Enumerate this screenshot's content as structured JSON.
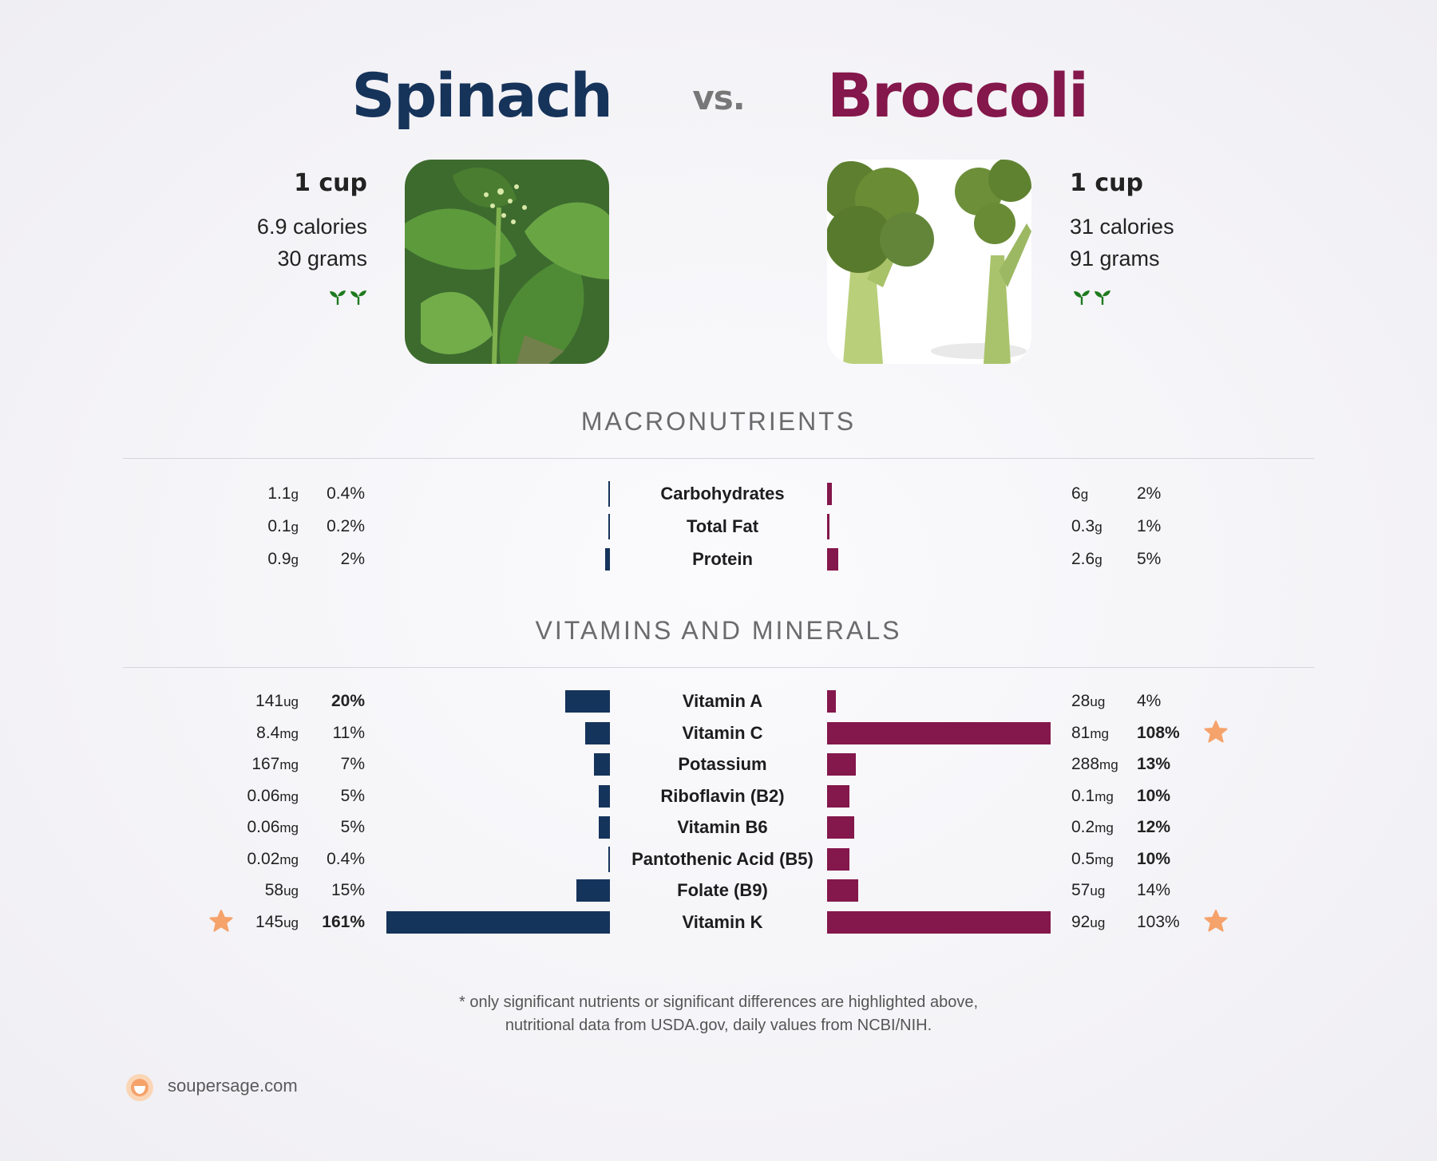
{
  "header": {
    "left_name": "Spinach",
    "vs": "vs.",
    "right_name": "Broccoli"
  },
  "left": {
    "serving": "1 cup",
    "calories": "6.9 calories",
    "grams": "30 grams",
    "image": "spinach-photo",
    "color": "#15345b"
  },
  "right": {
    "serving": "1 cup",
    "calories": "31 calories",
    "grams": "91 grams",
    "image": "broccoli-photo",
    "color": "#84174b"
  },
  "sections": {
    "macros": "MACRONUTRIENTS",
    "vitamins": "VITAMINS AND MINERALS"
  },
  "chart_data": [
    {
      "type": "bar",
      "title": "MACRONUTRIENTS",
      "categories": [
        "Carbohydrates",
        "Total Fat",
        "Protein"
      ],
      "series": [
        {
          "name": "Spinach",
          "values": [
            1.1,
            0.1,
            0.9
          ],
          "units": [
            "g",
            "g",
            "g"
          ],
          "dv_percent": [
            0.4,
            0.2,
            2
          ],
          "dv_labels": [
            "0.4%",
            "0.2%",
            "2%"
          ]
        },
        {
          "name": "Broccoli",
          "values": [
            6,
            0.3,
            2.6
          ],
          "units": [
            "g",
            "g",
            "g"
          ],
          "dv_percent": [
            2,
            1,
            5
          ],
          "dv_labels": [
            "2%",
            "1%",
            "5%"
          ]
        }
      ]
    },
    {
      "type": "bar",
      "title": "VITAMINS AND MINERALS",
      "categories": [
        "Vitamin A",
        "Vitamin C",
        "Potassium",
        "Riboflavin (B2)",
        "Vitamin B6",
        "Pantothenic Acid (B5)",
        "Folate (B9)",
        "Vitamin K"
      ],
      "series": [
        {
          "name": "Spinach",
          "values": [
            141,
            8.4,
            167,
            0.06,
            0.06,
            0.02,
            58,
            145
          ],
          "units": [
            "ug",
            "mg",
            "mg",
            "mg",
            "mg",
            "mg",
            "ug",
            "ug"
          ],
          "dv_percent": [
            20,
            11,
            7,
            5,
            5,
            0.4,
            15,
            161
          ],
          "dv_labels": [
            "20%",
            "11%",
            "7%",
            "5%",
            "5%",
            "0.4%",
            "15%",
            "161%"
          ],
          "bold": [
            true,
            false,
            false,
            false,
            false,
            false,
            false,
            true
          ],
          "star": [
            false,
            false,
            false,
            false,
            false,
            false,
            false,
            true
          ]
        },
        {
          "name": "Broccoli",
          "values": [
            28,
            81,
            288,
            0.1,
            0.2,
            0.5,
            57,
            92
          ],
          "units": [
            "ug",
            "mg",
            "mg",
            "mg",
            "mg",
            "mg",
            "ug",
            "ug"
          ],
          "dv_percent": [
            4,
            108,
            13,
            10,
            12,
            10,
            14,
            103
          ],
          "dv_labels": [
            "4%",
            "108%",
            "13%",
            "10%",
            "12%",
            "10%",
            "14%",
            "103%"
          ],
          "bold": [
            false,
            true,
            true,
            true,
            true,
            true,
            false,
            false
          ],
          "star": [
            false,
            true,
            false,
            false,
            false,
            false,
            false,
            true
          ]
        }
      ],
      "bar_cap_percent": 100
    }
  ],
  "footnote": {
    "line1": "* only significant nutrients or significant differences are highlighted above,",
    "line2": "nutritional data from USDA.gov, daily values from NCBI/NIH."
  },
  "brand": {
    "text": "soupersage.com",
    "icon": "soupersage-logo"
  },
  "icons": {
    "sprout": "sprout-icon",
    "star": "star-icon"
  },
  "colors": {
    "star": "#f5a26b",
    "sprout": "#1f7a1f"
  }
}
